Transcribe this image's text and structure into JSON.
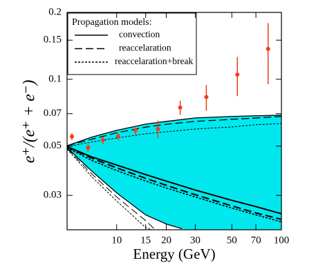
{
  "chart_data": {
    "type": "line",
    "xlabel": "Energy (GeV)",
    "ylabel": "e⁺/(e⁺ + e⁻)",
    "xscale": "log",
    "yscale": "log",
    "xlim": [
      5,
      100
    ],
    "ylim": [
      0.021,
      0.2
    ],
    "xticks": [
      10,
      15,
      20,
      30,
      50,
      70,
      100
    ],
    "yticks": [
      0.03,
      0.05,
      0.07,
      0.1,
      0.15,
      0.2
    ],
    "band_color": "#00e8ee",
    "legend": {
      "title": "Propagation models:",
      "position": "upper left",
      "entries": [
        {
          "name": "convection",
          "dash": "solid"
        },
        {
          "name": "reaccelaration",
          "dash": "dashed"
        },
        {
          "name": "reaccelaration+break",
          "dash": "dotted"
        }
      ]
    },
    "series": [
      {
        "dash": "solid",
        "width": 1.3,
        "x": [
          5,
          7,
          10,
          15,
          20,
          30,
          50,
          70,
          100
        ],
        "values": [
          0.0502,
          0.0548,
          0.0589,
          0.0628,
          0.0646,
          0.067,
          0.068,
          0.0685,
          0.0689
        ]
      },
      {
        "dash": "dashed",
        "width": 1.3,
        "x": [
          5,
          7,
          10,
          15,
          20,
          30,
          50,
          70,
          100
        ],
        "values": [
          0.0502,
          0.0536,
          0.0574,
          0.0609,
          0.0627,
          0.0646,
          0.066,
          0.0669,
          0.068
        ]
      },
      {
        "dash": "dotted",
        "width": 1,
        "x": [
          5,
          7,
          10,
          15,
          20,
          30,
          50,
          70,
          100
        ],
        "values": [
          0.0497,
          0.0521,
          0.0544,
          0.0568,
          0.058,
          0.0597,
          0.061,
          0.0624,
          0.0632
        ]
      },
      {
        "dash": "solid",
        "width": 2,
        "x": [
          5,
          7,
          10,
          15,
          20,
          30,
          50,
          70,
          100
        ],
        "values": [
          0.0497,
          0.0448,
          0.0411,
          0.0372,
          0.0348,
          0.0317,
          0.0285,
          0.0267,
          0.0248
        ]
      },
      {
        "dash": "dashed",
        "width": 2,
        "x": [
          5,
          7,
          10,
          15,
          20,
          30,
          50,
          70,
          100
        ],
        "values": [
          0.0497,
          0.0442,
          0.0399,
          0.0358,
          0.0333,
          0.0302,
          0.0269,
          0.025,
          0.0234
        ]
      },
      {
        "dash": "dotted",
        "width": 1.6,
        "x": [
          5,
          7,
          10,
          15,
          20,
          30,
          50,
          70,
          100
        ],
        "values": [
          0.0492,
          0.0432,
          0.0388,
          0.0348,
          0.0324,
          0.0295,
          0.0263,
          0.0245,
          0.0228
        ]
      },
      {
        "dash": "solid",
        "width": 1.3,
        "x": [
          5,
          7,
          10,
          15,
          20,
          25
        ],
        "values": [
          0.0492,
          0.0388,
          0.0308,
          0.0245,
          0.0223,
          0.0212
        ]
      },
      {
        "dash": "dashed",
        "width": 1,
        "x": [
          5,
          7,
          10,
          15,
          17
        ],
        "values": [
          0.0488,
          0.0377,
          0.0295,
          0.0231,
          0.0211
        ]
      },
      {
        "dash": "dotted",
        "width": 1,
        "x": [
          5,
          7,
          10,
          15,
          16
        ],
        "values": [
          0.0485,
          0.0366,
          0.0283,
          0.0215,
          0.0211
        ]
      }
    ],
    "points": {
      "color": "#f03c1e",
      "x": [
        5.35,
        6.7,
        8.25,
        10.2,
        13,
        17.8,
        24.3,
        35,
        54,
        83
      ],
      "values": [
        0.0552,
        0.0492,
        0.0532,
        0.0552,
        0.0589,
        0.0597,
        0.0746,
        0.0832,
        0.105,
        0.137
      ],
      "errors": [
        0.002,
        0.002,
        0.002,
        0.002,
        0.003,
        0.0055,
        0.0055,
        0.011,
        0.021,
        0.042
      ]
    }
  }
}
